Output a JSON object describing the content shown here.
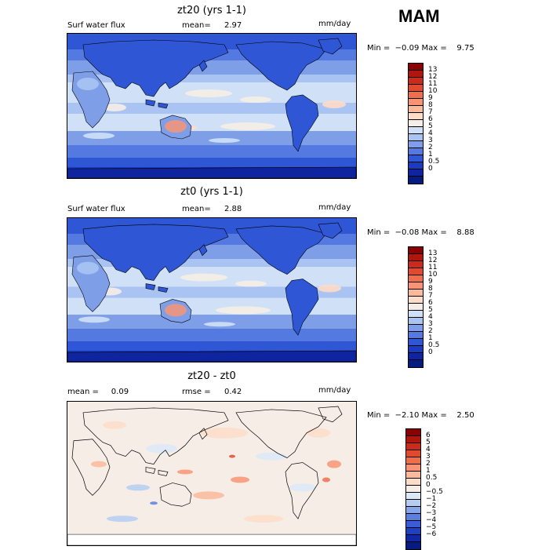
{
  "season": "MAM",
  "panels": [
    {
      "title": "zt20 (yrs 1-1)",
      "left_label": "Surf water flux",
      "stat_text": "mean=",
      "stat_value": "2.97",
      "units": "mm/day",
      "min_max": "Min =  −0.09 Max =    9.75",
      "colorbar": {
        "colors": [
          "#8b0000",
          "#b0170c",
          "#cc2a1a",
          "#e04a30",
          "#f06e4c",
          "#f89474",
          "#fcb99a",
          "#fddcc8",
          "#f6eee6",
          "#cfe0f7",
          "#a9c4f2",
          "#7e9fe8",
          "#5479e0",
          "#2f56d4",
          "#1a3ac0",
          "#0f25a0",
          "#061b80"
        ],
        "labels": [
          "13",
          "12",
          "11",
          "10",
          "9",
          "8",
          "7",
          "6",
          "5",
          "4",
          "3",
          "2",
          "1",
          "0.5",
          "0"
        ]
      },
      "field": "wet"
    },
    {
      "title": "zt0 (yrs 1-1)",
      "left_label": "Surf water flux",
      "stat_text": "mean=",
      "stat_value": "2.88",
      "units": "mm/day",
      "min_max": "Min =  −0.08 Max =    8.88",
      "colorbar": {
        "colors": [
          "#8b0000",
          "#b0170c",
          "#cc2a1a",
          "#e04a30",
          "#f06e4c",
          "#f89474",
          "#fcb99a",
          "#fddcc8",
          "#f6eee6",
          "#cfe0f7",
          "#a9c4f2",
          "#7e9fe8",
          "#5479e0",
          "#2f56d4",
          "#1a3ac0",
          "#0f25a0",
          "#061b80"
        ],
        "labels": [
          "13",
          "12",
          "11",
          "10",
          "9",
          "8",
          "7",
          "6",
          "5",
          "4",
          "3",
          "2",
          "1",
          "0.5",
          "0"
        ]
      },
      "field": "wet"
    },
    {
      "title": "zt20 - zt0",
      "left_label": "mean =     0.09",
      "stat_text": "rmse =",
      "stat_value": "0.42",
      "units": "mm/day",
      "min_max": "Min =  −2.10 Max =    2.50",
      "colorbar": {
        "colors": [
          "#8b0000",
          "#b0170c",
          "#cc2a1a",
          "#e04a30",
          "#f06e4c",
          "#f89474",
          "#fcb99a",
          "#fddcc8",
          "#f6eee6",
          "#dce8f8",
          "#b4ccf2",
          "#86a6e8",
          "#5c80e0",
          "#3a5cd6",
          "#2040c4",
          "#1028a6",
          "#061b80"
        ],
        "labels": [
          "6",
          "5",
          "4",
          "3",
          "2",
          "1",
          "0.5",
          "0",
          "−0.5",
          "−1",
          "−2",
          "−3",
          "−4",
          "−5",
          "−6"
        ]
      },
      "field": "diff"
    }
  ]
}
